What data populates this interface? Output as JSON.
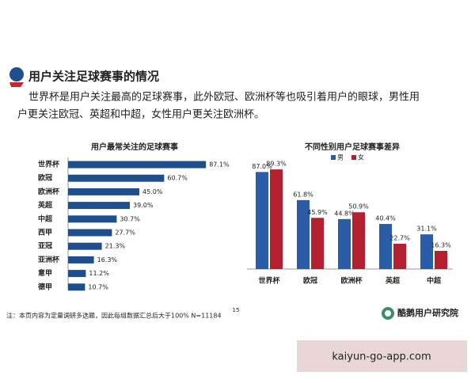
{
  "header": {
    "title": "用户关注足球赛事的情况",
    "text": [
      "世界杯是用户关注最高的足球赛事，此外欧冠、欧洲杯等也吸引着用户的眼球，男性用",
      "户更关注欧冠、英超和中超，女性用户更关注欧洲杯。"
    ]
  },
  "chart_data": [
    {
      "type": "hbar",
      "title": "用户最常关注的足球赛事",
      "categories": [
        "世界杯",
        "欧冠",
        "欧洲杯",
        "英超",
        "中超",
        "西甲",
        "亚冠",
        "亚洲杯",
        "意甲",
        "德甲"
      ],
      "values": [
        87.1,
        60.7,
        45.0,
        39.0,
        30.7,
        27.7,
        21.3,
        16.3,
        11.2,
        10.7
      ],
      "value_labels": [
        "87.1%",
        "60.7%",
        "45.0%",
        "39.0%",
        "30.7%",
        "27.7%",
        "21.3%",
        "16.3%",
        "11.2%",
        "10.7%"
      ],
      "color": "#1f4e8c",
      "xlim": [
        0,
        100
      ]
    },
    {
      "type": "groupbar",
      "title": "不同性别用户足球赛事差异",
      "categories": [
        "世界杯",
        "欧冠",
        "欧洲杯",
        "英超",
        "中超"
      ],
      "series": [
        {
          "name": "男",
          "color": "#2b5ca6",
          "values": [
            87.0,
            61.8,
            44.8,
            40.4,
            31.1
          ],
          "value_labels": [
            "87.0%",
            "61.8%",
            "44.8%",
            "40.4%",
            "31.1%"
          ]
        },
        {
          "name": "女",
          "color": "#b3202f",
          "values": [
            89.3,
            45.9,
            50.9,
            22.7,
            16.3
          ],
          "value_labels": [
            "89.3%",
            "45.9%",
            "50.9%",
            "22.7%",
            "16.3%"
          ]
        }
      ],
      "ylim": [
        0,
        100
      ],
      "legend": "top"
    }
  ],
  "note": "注：本页内容为定量调研多选题，因此每组数据汇总后大于100%  N=11184",
  "page_number": "15",
  "logo": "酷鹅用户研究院",
  "watermark": "kaiyun-go-app.com"
}
